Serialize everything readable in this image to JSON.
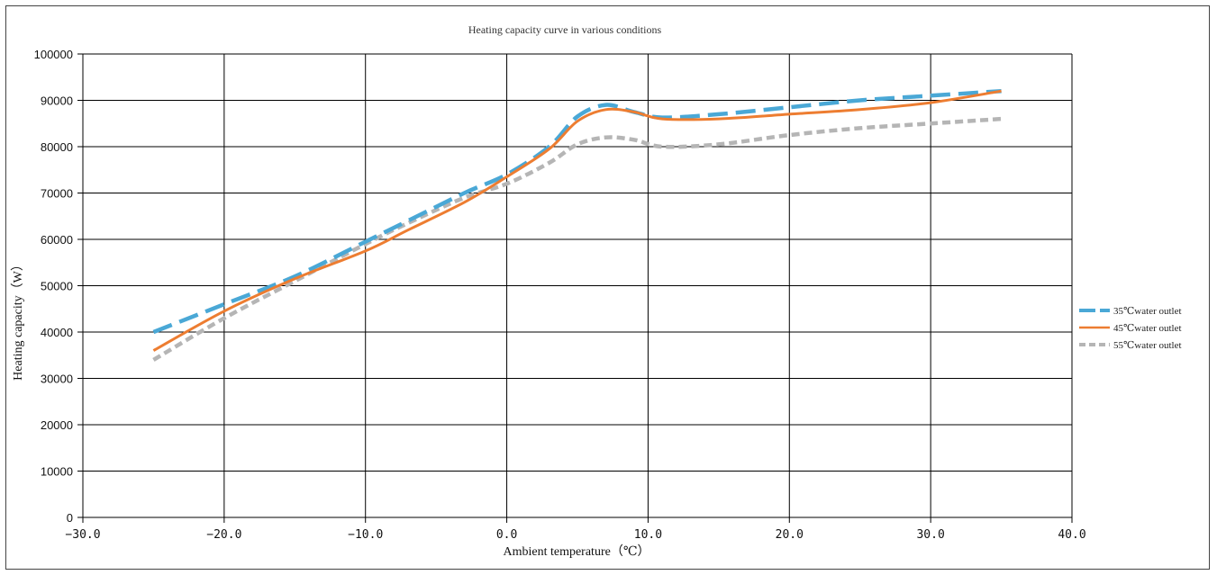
{
  "chart_data": {
    "type": "line",
    "title": "Heating capacity curve in various conditions",
    "xlabel": "Ambient temperature（℃）",
    "ylabel": "Heating capacity（W）",
    "xlim": [
      -30,
      40
    ],
    "ylim": [
      0,
      100000
    ],
    "x_ticks": [
      "−30.0",
      "−20.0",
      "−10.0",
      "0.0",
      "10.0",
      "20.0",
      "30.0",
      "40.0"
    ],
    "x_tick_values": [
      -30,
      -20,
      -10,
      0,
      10,
      20,
      30,
      40
    ],
    "y_ticks": [
      "0",
      "10000",
      "20000",
      "30000",
      "40000",
      "50000",
      "60000",
      "70000",
      "80000",
      "90000",
      "100000"
    ],
    "y_tick_values": [
      0,
      10000,
      20000,
      30000,
      40000,
      50000,
      60000,
      70000,
      80000,
      90000,
      100000
    ],
    "grid": true,
    "legend_position": "right",
    "series": [
      {
        "name": "35℃water outlet",
        "color": "#4aa8d6",
        "style": "long-dash",
        "x": [
          -25,
          -20,
          -15,
          -10,
          -7,
          -3,
          0,
          3,
          5,
          7,
          9,
          11,
          15,
          20,
          25,
          30,
          35
        ],
        "y": [
          40000,
          46000,
          52000,
          59500,
          64000,
          70000,
          74000,
          80000,
          86500,
          89000,
          87500,
          86300,
          87000,
          88500,
          90000,
          91000,
          92000
        ]
      },
      {
        "name": "45℃water outlet",
        "color": "#ed7d31",
        "style": "solid",
        "x": [
          -25,
          -20,
          -15,
          -10,
          -7,
          -3,
          0,
          3,
          5,
          7,
          9,
          11,
          15,
          20,
          25,
          30,
          35
        ],
        "y": [
          36000,
          44500,
          51500,
          57500,
          62000,
          68000,
          73500,
          79500,
          85500,
          88000,
          87500,
          86000,
          86000,
          87000,
          88000,
          89500,
          92000
        ]
      },
      {
        "name": "55℃water outlet",
        "color": "#b5b5b5",
        "style": "short-dash",
        "x": [
          -25,
          -20,
          -15,
          -10,
          -7,
          -3,
          0,
          3,
          5,
          7,
          9,
          11,
          15,
          20,
          25,
          30,
          35
        ],
        "y": [
          34000,
          43000,
          51000,
          59000,
          63500,
          69000,
          72000,
          76500,
          80500,
          82000,
          81500,
          80000,
          80500,
          82500,
          84000,
          85000,
          86000
        ]
      }
    ]
  }
}
